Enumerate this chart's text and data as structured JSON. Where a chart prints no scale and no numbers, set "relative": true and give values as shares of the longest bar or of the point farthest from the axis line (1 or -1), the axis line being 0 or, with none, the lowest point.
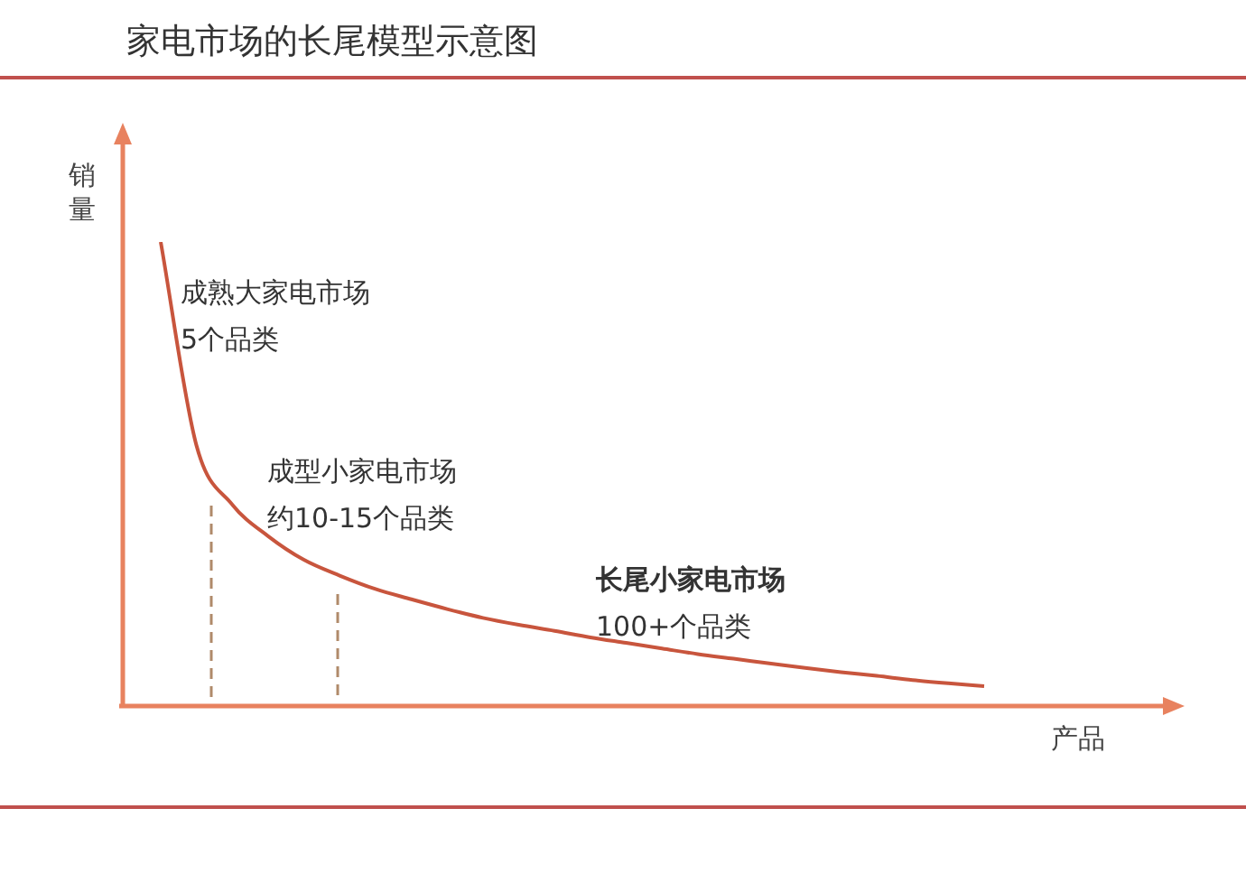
{
  "chart_data": {
    "type": "line",
    "title": "家电市场的长尾模型示意图",
    "xlabel": "产品",
    "ylabel": "销量",
    "relative": true,
    "categories": [
      null,
      null,
      null,
      null,
      null,
      null,
      null,
      null,
      null,
      null,
      null,
      null,
      null,
      null,
      null,
      null,
      null,
      null,
      null,
      null,
      null,
      null,
      null,
      null
    ],
    "series": [
      {
        "color": "#c8553d",
        "values": [
          1.0,
          0.561,
          0.434,
          0.366,
          0.315,
          0.281,
          0.252,
          0.23,
          0.209,
          0.19,
          0.175,
          0.162,
          0.148,
          0.136,
          0.124,
          0.112,
          0.102,
          0.092,
          0.082,
          0.073,
          0.065,
          0.056,
          0.049,
          0.043
        ]
      }
    ],
    "annotations": [
      "成熟大家电市场",
      "5个品类",
      "成型小家电市场",
      "约10-15个品类",
      "长尾小家电市场",
      "100+个品类"
    ]
  }
}
